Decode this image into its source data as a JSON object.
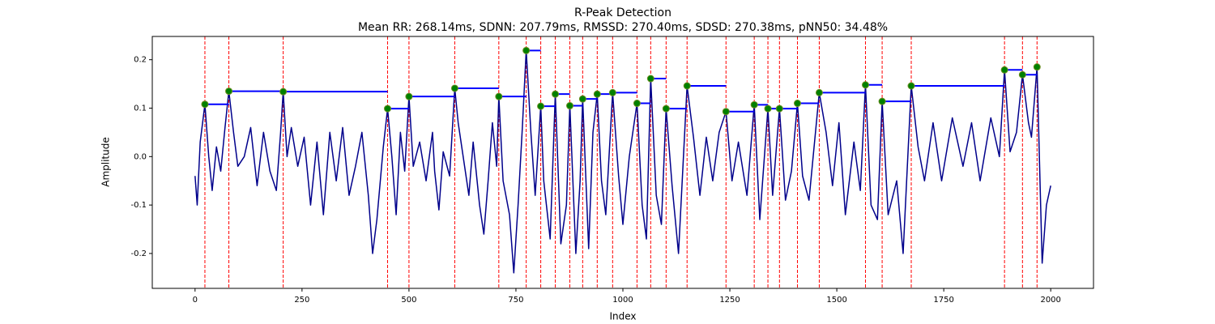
{
  "chart_data": {
    "type": "line",
    "title": "R-Peak Detection",
    "subtitle": "Mean RR: 268.14ms, SDNN: 207.79ms, RMSSD: 270.40ms, SDSD: 270.38ms, pNN50: 34.48%",
    "xlabel": "Index",
    "ylabel": "Amplitude",
    "xlim": [
      -100,
      2100
    ],
    "ylim": [
      -0.272,
      0.248
    ],
    "xticks": [
      0,
      250,
      500,
      750,
      1000,
      1250,
      1500,
      1750,
      2000
    ],
    "yticks": [
      -0.2,
      -0.1,
      {
        "value": 0,
        "label": "0.0"
      },
      0.1,
      0.2
    ],
    "signal": {
      "color": "#00008b",
      "x": [
        0,
        5,
        12,
        23,
        32,
        40,
        50,
        60,
        70,
        79,
        90,
        100,
        115,
        130,
        145,
        160,
        175,
        190,
        200,
        206,
        215,
        225,
        240,
        255,
        270,
        285,
        300,
        315,
        330,
        345,
        360,
        375,
        390,
        405,
        415,
        425,
        440,
        450,
        460,
        470,
        480,
        490,
        500,
        510,
        525,
        540,
        555,
        560,
        570,
        580,
        595,
        607,
        615,
        630,
        640,
        650,
        665,
        675,
        685,
        695,
        705,
        710,
        720,
        735,
        745,
        755,
        765,
        774,
        785,
        795,
        808,
        815,
        830,
        842,
        855,
        868,
        876,
        890,
        900,
        906,
        920,
        930,
        940,
        950,
        960,
        976,
        990,
        1000,
        1015,
        1033,
        1045,
        1055,
        1065,
        1078,
        1090,
        1101,
        1115,
        1130,
        1150,
        1165,
        1180,
        1195,
        1210,
        1225,
        1241,
        1255,
        1270,
        1290,
        1307,
        1320,
        1339,
        1350,
        1366,
        1380,
        1394,
        1408,
        1420,
        1435,
        1459,
        1475,
        1490,
        1505,
        1520,
        1540,
        1555,
        1567,
        1580,
        1595,
        1606,
        1620,
        1640,
        1655,
        1674,
        1690,
        1705,
        1725,
        1745,
        1770,
        1795,
        1815,
        1835,
        1860,
        1880,
        1892,
        1905,
        1920,
        1934,
        1948,
        1955,
        1968,
        1980,
        1990,
        2000
      ],
      "values": [
        -0.04,
        -0.1,
        0.03,
        0.108,
        0.0,
        -0.07,
        0.02,
        -0.03,
        0.06,
        0.135,
        0.05,
        -0.02,
        0.0,
        0.06,
        -0.06,
        0.05,
        -0.03,
        -0.07,
        0.05,
        0.134,
        0.0,
        0.06,
        -0.02,
        0.04,
        -0.1,
        0.03,
        -0.12,
        0.05,
        -0.05,
        0.06,
        -0.08,
        -0.02,
        0.05,
        -0.08,
        -0.2,
        -0.13,
        0.02,
        0.099,
        0.0,
        -0.12,
        0.05,
        -0.03,
        0.124,
        -0.02,
        0.03,
        -0.05,
        0.05,
        -0.03,
        -0.11,
        0.01,
        -0.04,
        0.141,
        0.07,
        -0.02,
        -0.08,
        0.03,
        -0.1,
        -0.16,
        -0.05,
        0.07,
        -0.02,
        0.124,
        -0.05,
        -0.12,
        -0.24,
        -0.1,
        0.06,
        0.219,
        0.05,
        -0.08,
        0.104,
        -0.05,
        -0.17,
        0.129,
        -0.18,
        -0.1,
        0.105,
        -0.2,
        -0.05,
        0.119,
        -0.19,
        0.05,
        0.129,
        -0.05,
        -0.12,
        0.132,
        -0.04,
        -0.14,
        0.0,
        0.11,
        -0.1,
        -0.17,
        0.161,
        -0.08,
        -0.14,
        0.099,
        -0.06,
        -0.2,
        0.146,
        0.04,
        -0.08,
        0.04,
        -0.05,
        0.05,
        0.093,
        -0.05,
        0.03,
        -0.08,
        0.107,
        -0.13,
        0.099,
        -0.08,
        0.099,
        -0.09,
        -0.03,
        0.11,
        -0.04,
        -0.09,
        0.132,
        0.05,
        -0.06,
        0.07,
        -0.12,
        0.03,
        -0.07,
        0.148,
        -0.1,
        -0.13,
        0.114,
        -0.12,
        -0.05,
        -0.2,
        0.146,
        0.02,
        -0.05,
        0.07,
        -0.05,
        0.08,
        -0.02,
        0.07,
        -0.05,
        0.08,
        0.0,
        0.179,
        0.01,
        0.05,
        0.169,
        0.07,
        0.04,
        0.185,
        -0.22,
        -0.1,
        -0.06
      ]
    },
    "peaks": {
      "color": "#008000",
      "line_color": "#ff0000",
      "rr_color": "#0000ff",
      "x": [
        23,
        79,
        206,
        450,
        500,
        607,
        710,
        774,
        808,
        842,
        876,
        906,
        940,
        976,
        1033,
        1065,
        1101,
        1150,
        1241,
        1307,
        1339,
        1366,
        1408,
        1459,
        1567,
        1606,
        1674,
        1892,
        1934,
        1968
      ],
      "values": [
        0.108,
        0.135,
        0.134,
        0.099,
        0.124,
        0.141,
        0.124,
        0.219,
        0.104,
        0.129,
        0.105,
        0.119,
        0.129,
        0.132,
        0.11,
        0.161,
        0.099,
        0.146,
        0.093,
        0.107,
        0.099,
        0.099,
        0.11,
        0.132,
        0.148,
        0.114,
        0.146,
        0.179,
        0.169,
        0.185
      ]
    }
  }
}
